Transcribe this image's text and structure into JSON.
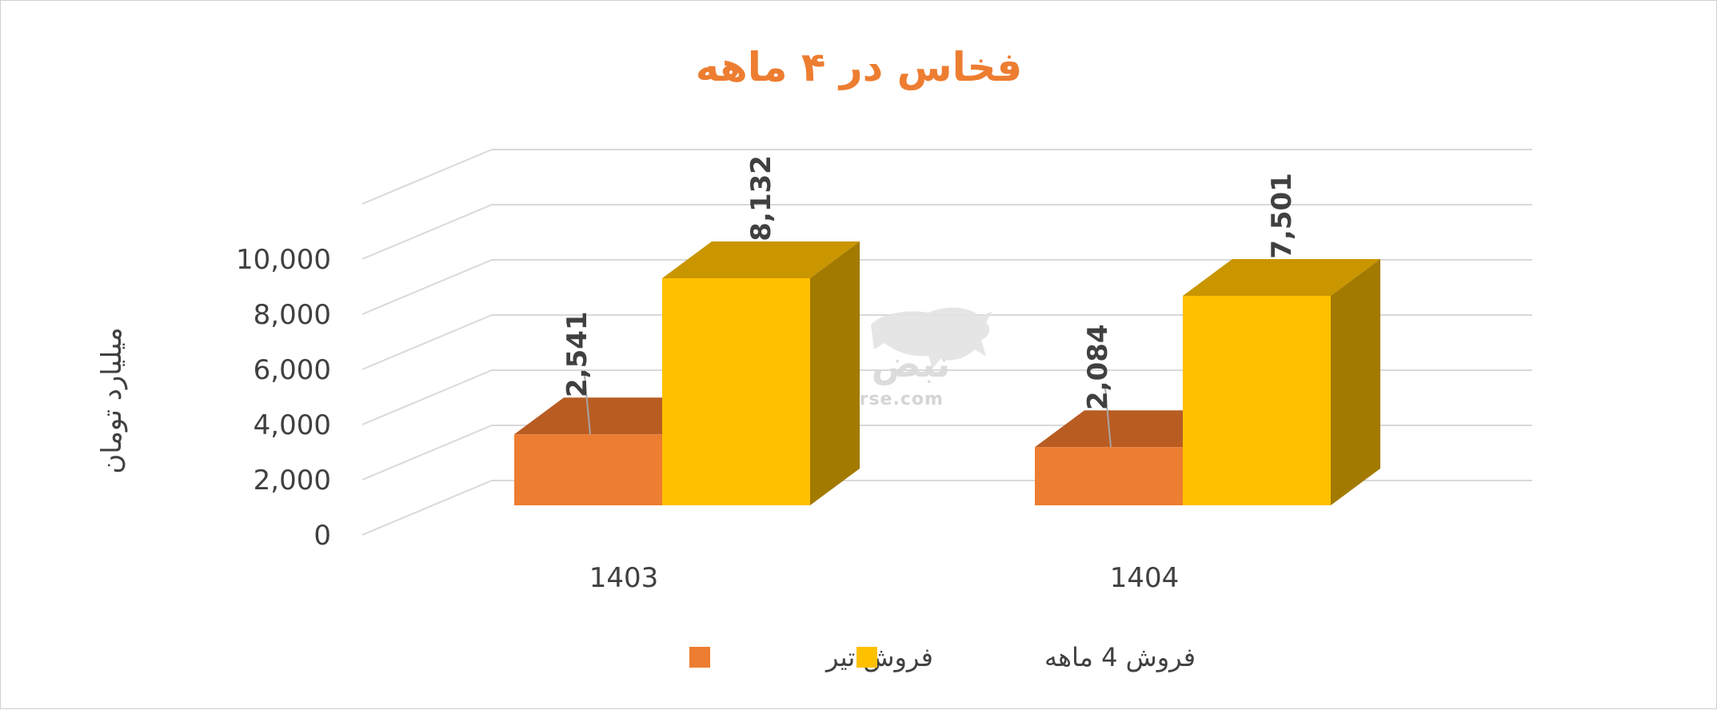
{
  "chart_data": {
    "type": "bar",
    "title": "فخاس در ۴ ماهه",
    "ylabel": "میلیارد تومان",
    "xlabel": "",
    "ylim": [
      0,
      10000
    ],
    "yticks": [
      0,
      2000,
      4000,
      6000,
      8000,
      10000
    ],
    "ytick_labels": [
      "0",
      "2,000",
      "4,000",
      "6,000",
      "8,000",
      "10,000"
    ],
    "categories": [
      "1403",
      "1404"
    ],
    "series": [
      {
        "name": "فروش تیر",
        "values": [
          2541,
          2084
        ],
        "labels": [
          "2,541",
          "2,084"
        ],
        "color": "#ed7d31",
        "top_color": "#b85c22"
      },
      {
        "name": "فروش 4  ماهه",
        "values": [
          8132,
          7501
        ],
        "labels": [
          "8,132",
          "7,501"
        ],
        "color": "#ffc000",
        "top_color": "#c99600",
        "side_color": "#a37a00"
      }
    ],
    "grid": true,
    "three_d": true,
    "legend_position": "bottom"
  },
  "watermark": {
    "text": "نبض بورس",
    "url": "nabzebourse.com",
    "icon": "bull-icon"
  }
}
